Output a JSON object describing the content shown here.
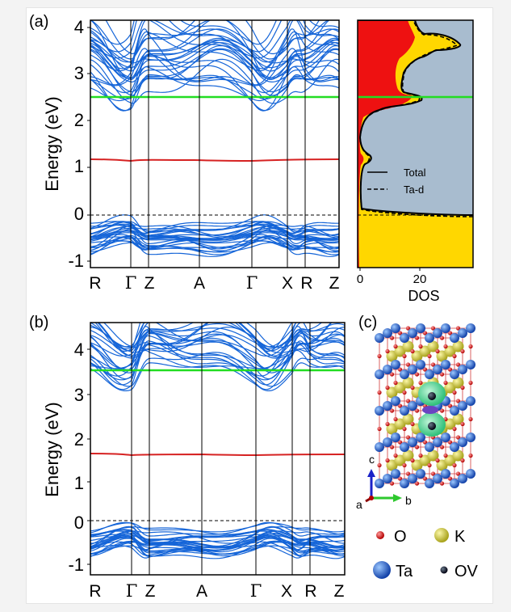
{
  "panel_labels": {
    "a": "(a)",
    "b": "(b)",
    "c": "(c)"
  },
  "colors": {
    "band": "#1565d8",
    "defect_band": "#d62222",
    "gap_line": "#22dd22",
    "fermi_line": "#000000",
    "dos_total_fill": "#a8bccf",
    "dos_red": "#ee1111",
    "dos_yellow": "#ffd700"
  },
  "band_a": {
    "ylabel": "Energy (eV)",
    "yticks": [
      "-1",
      "0",
      "1",
      "2",
      "3",
      "4"
    ],
    "ylim": [
      -1.1,
      4.2
    ],
    "kpoints": [
      "R",
      "Γ",
      "Z",
      "A",
      "Γ",
      "X",
      "R",
      "Z"
    ],
    "green_level": 2.5,
    "red_level": 1.18,
    "fermi": 0
  },
  "dos": {
    "xlabel": "DOS",
    "xticks": [
      "0",
      "20"
    ],
    "legend": {
      "total": "Total",
      "tad": "Ta-d"
    }
  },
  "band_b": {
    "ylabel": "Energy (eV)",
    "yticks": [
      "-1",
      "0",
      "1",
      "2",
      "3",
      "4"
    ],
    "ylim": [
      -1.2,
      4.6
    ],
    "kpoints": [
      "R",
      "Γ",
      "Z",
      "A",
      "Γ",
      "X",
      "R",
      "Z"
    ],
    "green_level": 3.5,
    "red_level": 1.55,
    "fermi": 0
  },
  "structure": {
    "axes": {
      "a": "a",
      "b": "b",
      "c": "c"
    },
    "legend": {
      "o": "O",
      "k": "K",
      "ta": "Ta",
      "ov": "OV"
    }
  }
}
